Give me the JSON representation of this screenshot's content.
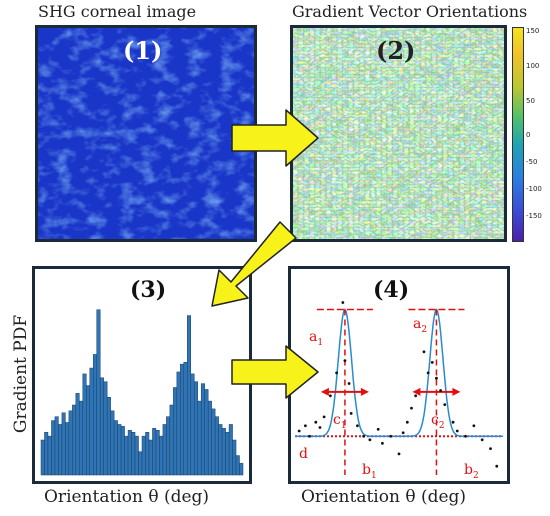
{
  "titles": {
    "panel1": "SHG corneal image",
    "panel2": "Gradient Vector Orientations"
  },
  "panels": {
    "p1": "(1)",
    "p2": "(2)",
    "p3": "(3)",
    "p4": "(4)"
  },
  "colorbar": {
    "ticks": [
      "150",
      "100",
      "50",
      "0",
      "-50",
      "-100",
      "-150"
    ]
  },
  "axes": {
    "ylabel3": "Gradient PDF",
    "xlabel3": "Orientation θ (deg)",
    "xlabel4": "Orientation θ (deg)"
  },
  "fit_labels": {
    "a1": "a",
    "a1_sub": "1",
    "a2": "a",
    "a2_sub": "2",
    "b1": "b",
    "b1_sub": "1",
    "b2": "b",
    "b2_sub": "2",
    "c1": "c",
    "c1_sub": "1",
    "c2": "c",
    "c2_sub": "2",
    "d": "d"
  },
  "colors": {
    "image_blue": "#1f3fd0",
    "bar_blue": "#2f75b5",
    "arrow_yellow": "#f7f21a",
    "fit_red": "#e01010",
    "curve_blue": "#2a8ad1"
  },
  "chart_data": [
    {
      "type": "bar",
      "panel": "(3)",
      "ylabel": "Gradient PDF",
      "xlabel": "Orientation θ (deg)",
      "values": [
        0.18,
        0.22,
        0.2,
        0.28,
        0.3,
        0.26,
        0.32,
        0.27,
        0.33,
        0.36,
        0.42,
        0.38,
        0.52,
        0.46,
        0.55,
        0.62,
        0.85,
        0.5,
        0.48,
        0.4,
        0.33,
        0.28,
        0.26,
        0.25,
        0.2,
        0.23,
        0.22,
        0.2,
        0.12,
        0.2,
        0.22,
        0.18,
        0.24,
        0.23,
        0.2,
        0.26,
        0.3,
        0.36,
        0.45,
        0.53,
        0.57,
        0.58,
        0.82,
        0.52,
        0.48,
        0.38,
        0.47,
        0.44,
        0.38,
        0.34,
        0.3,
        0.26,
        0.24,
        0.22,
        0.26,
        0.18,
        0.1,
        0.06
      ]
    },
    {
      "type": "scatter",
      "panel": "(4)",
      "xlabel": "Orientation θ (deg)",
      "points": [
        [
          0.02,
          0.25
        ],
        [
          0.05,
          0.28
        ],
        [
          0.07,
          0.22
        ],
        [
          0.1,
          0.3
        ],
        [
          0.12,
          0.27
        ],
        [
          0.14,
          0.33
        ],
        [
          0.17,
          0.45
        ],
        [
          0.2,
          0.58
        ],
        [
          0.23,
          0.98
        ],
        [
          0.24,
          0.65
        ],
        [
          0.26,
          0.52
        ],
        [
          0.27,
          0.35
        ],
        [
          0.3,
          0.28
        ],
        [
          0.33,
          0.22
        ],
        [
          0.36,
          0.2
        ],
        [
          0.4,
          0.26
        ],
        [
          0.42,
          0.18
        ],
        [
          0.46,
          0.22
        ],
        [
          0.5,
          0.12
        ],
        [
          0.52,
          0.24
        ],
        [
          0.54,
          0.3
        ],
        [
          0.56,
          0.38
        ],
        [
          0.58,
          0.45
        ],
        [
          0.62,
          0.7
        ],
        [
          0.64,
          0.58
        ],
        [
          0.66,
          0.64
        ],
        [
          0.68,
          0.55
        ],
        [
          0.7,
          0.48
        ],
        [
          0.72,
          0.4
        ],
        [
          0.76,
          0.3
        ],
        [
          0.78,
          0.25
        ],
        [
          0.82,
          0.22
        ],
        [
          0.86,
          0.28
        ],
        [
          0.9,
          0.2
        ],
        [
          0.94,
          0.15
        ],
        [
          0.97,
          0.05
        ]
      ],
      "gaussians": [
        {
          "center": 0.24,
          "amp": 0.72
        },
        {
          "center": 0.68,
          "amp": 0.72
        }
      ],
      "baseline": 0.22
    }
  ]
}
